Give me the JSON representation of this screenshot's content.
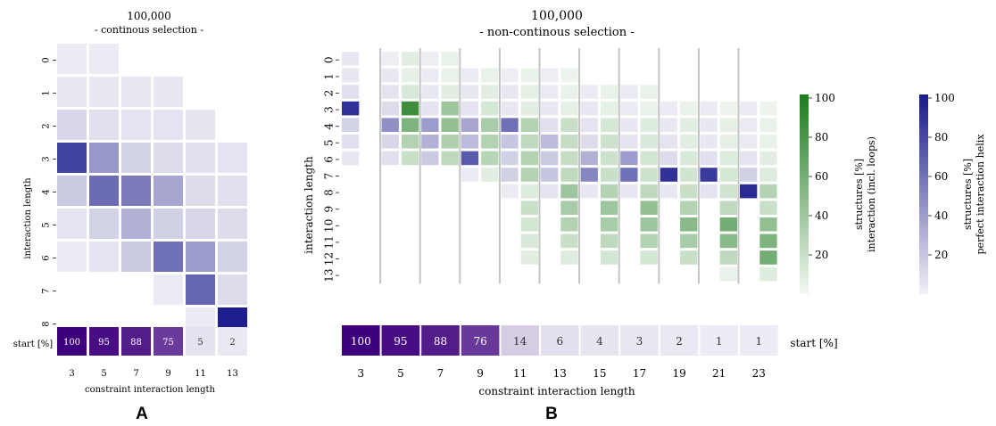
{
  "chart_data": [
    {
      "type": "heatmap",
      "panel_label": "A",
      "title_line1": "100,000",
      "title_line2": "- continous selection -",
      "xlabel": "constraint interaction length",
      "ylabel": "interaction length",
      "x_categories": [
        "3",
        "5",
        "7",
        "9",
        "11",
        "13"
      ],
      "y_categories": [
        "0",
        "1",
        "2",
        "3",
        "4",
        "5",
        "6",
        "7",
        "8"
      ],
      "helix_percent": [
        [
          3,
          3,
          null,
          null,
          null,
          null
        ],
        [
          4,
          4,
          4,
          4,
          null,
          null
        ],
        [
          12,
          8,
          6,
          6,
          5,
          null
        ],
        [
          82,
          42,
          14,
          10,
          8,
          6
        ],
        [
          18,
          62,
          55,
          35,
          10,
          8
        ],
        [
          6,
          14,
          30,
          15,
          12,
          10
        ],
        [
          3,
          6,
          18,
          60,
          40,
          14
        ],
        [
          null,
          null,
          null,
          3,
          65,
          10
        ],
        [
          null,
          null,
          null,
          null,
          3,
          98
        ]
      ],
      "start_label": "start [%]",
      "start_values": [
        100,
        95,
        88,
        75,
        5,
        2
      ]
    },
    {
      "type": "heatmap",
      "panel_label": "B",
      "title_line1": "100,000",
      "title_line2": "- non-continous selection -",
      "xlabel": "constraint interaction length",
      "ylabel": "interaction length",
      "x_categories": [
        "3",
        "5",
        "7",
        "9",
        "11",
        "13",
        "15",
        "17",
        "19",
        "21",
        "23"
      ],
      "y_categories": [
        "0",
        "1",
        "2",
        "3",
        "4",
        "5",
        "6",
        "7",
        "8",
        "9",
        "10",
        "11",
        "12",
        "13"
      ],
      "helix_percent": [
        [
          4,
          2,
          2,
          null,
          null,
          null,
          null,
          null,
          null,
          null,
          null
        ],
        [
          4,
          4,
          3,
          3,
          2,
          2,
          null,
          null,
          null,
          null,
          null
        ],
        [
          8,
          6,
          4,
          4,
          4,
          3,
          3,
          3,
          null,
          null,
          null
        ],
        [
          90,
          10,
          6,
          6,
          4,
          4,
          4,
          3,
          3,
          3,
          3
        ],
        [
          14,
          45,
          40,
          35,
          60,
          8,
          6,
          4,
          4,
          4,
          3
        ],
        [
          8,
          12,
          30,
          25,
          20,
          25,
          10,
          6,
          6,
          4,
          3
        ],
        [
          4,
          8,
          18,
          70,
          15,
          18,
          30,
          40,
          10,
          8,
          6
        ],
        [
          null,
          null,
          null,
          3,
          15,
          20,
          50,
          60,
          90,
          85,
          15
        ],
        [
          null,
          null,
          null,
          null,
          3,
          6,
          4,
          4,
          4,
          6,
          92
        ],
        [
          null,
          null,
          null,
          null,
          null,
          null,
          null,
          null,
          null,
          null,
          null
        ],
        [
          null,
          null,
          null,
          null,
          null,
          null,
          null,
          null,
          null,
          null,
          null
        ],
        [
          null,
          null,
          null,
          null,
          null,
          null,
          null,
          null,
          null,
          null,
          null
        ],
        [
          null,
          null,
          null,
          null,
          null,
          null,
          null,
          null,
          null,
          null,
          null
        ],
        [
          null,
          null,
          null,
          null,
          null,
          null,
          null,
          null,
          null,
          null,
          null
        ]
      ],
      "loops_percent": [
        [
          null,
          8,
          5,
          null,
          null,
          null,
          null,
          null,
          null,
          null,
          null
        ],
        [
          null,
          6,
          5,
          5,
          4,
          3,
          null,
          null,
          null,
          null,
          null
        ],
        [
          null,
          12,
          8,
          8,
          6,
          5,
          5,
          4,
          null,
          null,
          null
        ],
        [
          null,
          85,
          40,
          14,
          8,
          6,
          6,
          5,
          4,
          3,
          3
        ],
        [
          null,
          55,
          45,
          35,
          30,
          20,
          14,
          10,
          8,
          6,
          5
        ],
        [
          null,
          30,
          32,
          30,
          25,
          22,
          18,
          12,
          8,
          6,
          5
        ],
        [
          null,
          20,
          25,
          28,
          30,
          22,
          18,
          15,
          12,
          10,
          8
        ],
        [
          null,
          null,
          null,
          8,
          30,
          25,
          20,
          18,
          16,
          14,
          10
        ],
        [
          null,
          null,
          null,
          null,
          10,
          40,
          30,
          25,
          20,
          16,
          30
        ],
        [
          null,
          null,
          null,
          null,
          20,
          35,
          40,
          45,
          30,
          25,
          20
        ],
        [
          null,
          null,
          null,
          null,
          15,
          30,
          35,
          40,
          50,
          60,
          45
        ],
        [
          null,
          null,
          null,
          null,
          12,
          20,
          25,
          30,
          35,
          50,
          55
        ],
        [
          null,
          null,
          null,
          null,
          8,
          10,
          15,
          15,
          20,
          25,
          60
        ],
        [
          null,
          null,
          null,
          null,
          null,
          null,
          null,
          null,
          null,
          5,
          10
        ]
      ],
      "start_label": "start [%]",
      "start_values": [
        100,
        95,
        88,
        76,
        14,
        6,
        4,
        3,
        2,
        1,
        1
      ]
    }
  ],
  "colorbars": [
    {
      "label_line1": "structures [%]",
      "label_line2": "interaction (incl. loops)",
      "ticks": [
        "100",
        "80",
        "60",
        "40",
        "20"
      ],
      "range": [
        0,
        100
      ],
      "color": "#1e7b1e"
    },
    {
      "label_line1": "structures [%]",
      "label_line2": "perfect interaction helix",
      "ticks": [
        "100",
        "80",
        "60",
        "40",
        "20"
      ],
      "range": [
        0,
        100
      ],
      "color": "#1a1a8c"
    }
  ],
  "colors": {
    "helix_max": "#1a1a8c",
    "loops_max": "#1e7b1e",
    "start_max": "#3f007d",
    "empty": "#efeff5",
    "separator": "#c4c4c4"
  }
}
